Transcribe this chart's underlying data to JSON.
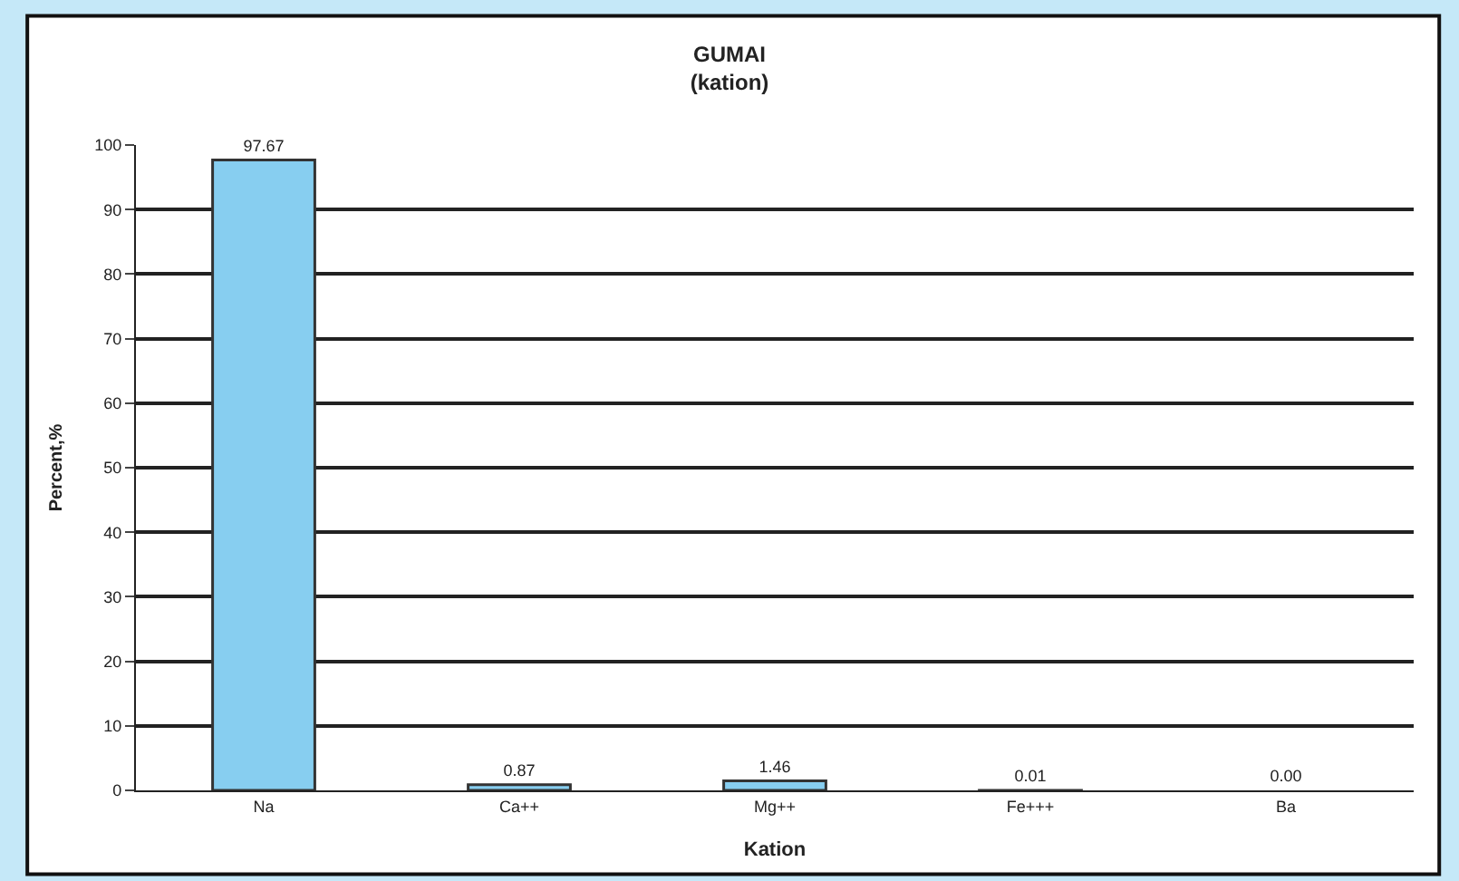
{
  "chart_data": {
    "type": "bar",
    "title": "GUMAI",
    "subtitle": "(kation)",
    "xlabel": "Kation",
    "ylabel": "Percent,%",
    "categories": [
      "Na",
      "Ca++",
      "Mg++",
      "Fe+++",
      "Ba"
    ],
    "values": [
      97.67,
      0.87,
      1.46,
      0.01,
      0.0
    ],
    "value_labels": [
      "97.67",
      "0.87",
      "1.46",
      "0.01",
      "0.00"
    ],
    "color": "#87cef0",
    "ylim": [
      0,
      100
    ],
    "yticks": [
      0,
      10,
      20,
      30,
      40,
      50,
      60,
      70,
      80,
      90,
      100
    ],
    "grid": "y"
  }
}
